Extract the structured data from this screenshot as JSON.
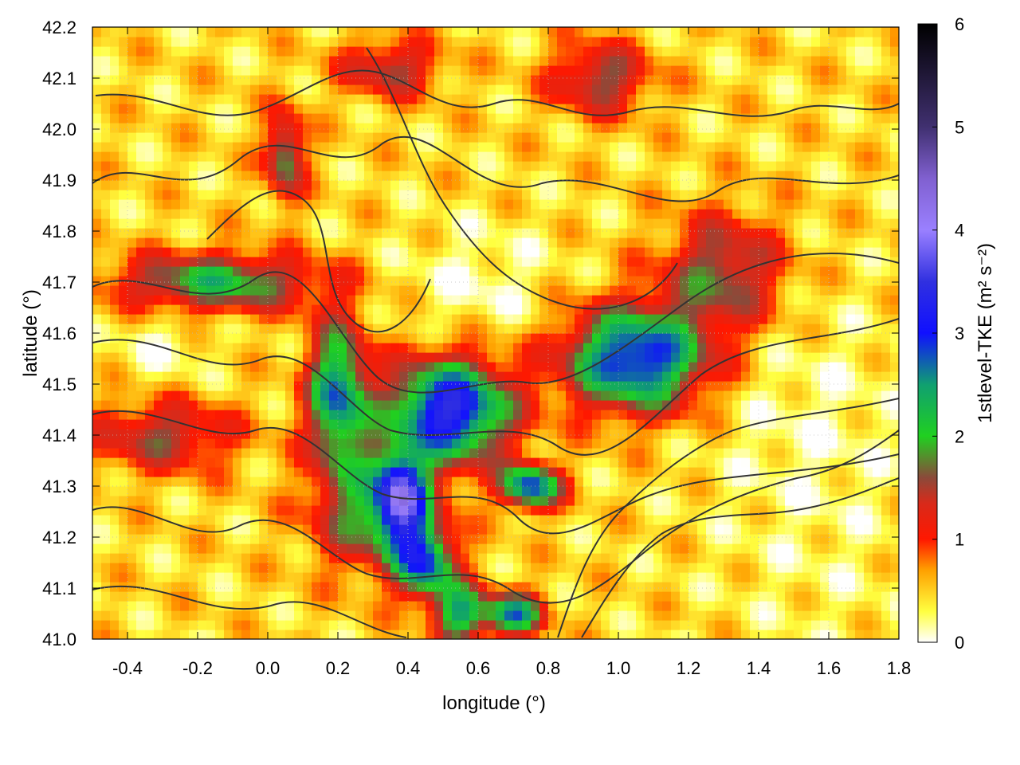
{
  "chart_data": {
    "type": "heatmap",
    "xlabel": "longitude (°)",
    "ylabel": "latitude (°)",
    "colorbar_label": "1stlevel-TKE (m² s⁻²)",
    "xlim": [
      -0.5,
      1.8
    ],
    "ylim": [
      41.0,
      42.2
    ],
    "x_ticks": [
      {
        "value": -0.4,
        "label": "-0.4"
      },
      {
        "value": -0.2,
        "label": "-0.2"
      },
      {
        "value": 0.0,
        "label": "0.0"
      },
      {
        "value": 0.2,
        "label": "0.2"
      },
      {
        "value": 0.4,
        "label": "0.4"
      },
      {
        "value": 0.6,
        "label": "0.6"
      },
      {
        "value": 0.8,
        "label": "0.8"
      },
      {
        "value": 1.0,
        "label": "1.0"
      },
      {
        "value": 1.2,
        "label": "1.2"
      },
      {
        "value": 1.4,
        "label": "1.4"
      },
      {
        "value": 1.6,
        "label": "1.6"
      },
      {
        "value": 1.8,
        "label": "1.8"
      }
    ],
    "y_ticks": [
      {
        "value": 41.0,
        "label": "41.0"
      },
      {
        "value": 41.1,
        "label": "41.1"
      },
      {
        "value": 41.2,
        "label": "41.2"
      },
      {
        "value": 41.3,
        "label": "41.3"
      },
      {
        "value": 41.4,
        "label": "41.4"
      },
      {
        "value": 41.5,
        "label": "41.5"
      },
      {
        "value": 41.6,
        "label": "41.6"
      },
      {
        "value": 41.7,
        "label": "41.7"
      },
      {
        "value": 41.8,
        "label": "41.8"
      },
      {
        "value": 41.9,
        "label": "41.9"
      },
      {
        "value": 42.0,
        "label": "42.0"
      },
      {
        "value": 42.1,
        "label": "42.1"
      },
      {
        "value": 42.2,
        "label": "42.2"
      }
    ],
    "colorbar": {
      "range": [
        0,
        6
      ],
      "ticks": [
        {
          "value": 0,
          "label": "0"
        },
        {
          "value": 1,
          "label": "1"
        },
        {
          "value": 2,
          "label": "2"
        },
        {
          "value": 3,
          "label": "3"
        },
        {
          "value": 4,
          "label": "4"
        },
        {
          "value": 5,
          "label": "5"
        },
        {
          "value": 6,
          "label": "6"
        }
      ],
      "palette": [
        {
          "value": 0.0,
          "color": "#ffffff"
        },
        {
          "value": 0.3,
          "color": "#ffff40"
        },
        {
          "value": 0.7,
          "color": "#ffa000"
        },
        {
          "value": 1.0,
          "color": "#ff1800"
        },
        {
          "value": 1.35,
          "color": "#d82a1a"
        },
        {
          "value": 1.6,
          "color": "#8a4a3a"
        },
        {
          "value": 2.0,
          "color": "#20d020"
        },
        {
          "value": 2.5,
          "color": "#10a070"
        },
        {
          "value": 3.0,
          "color": "#1010ff"
        },
        {
          "value": 3.5,
          "color": "#3030e0"
        },
        {
          "value": 4.0,
          "color": "#9a80ff"
        },
        {
          "value": 4.5,
          "color": "#8060d0"
        },
        {
          "value": 5.0,
          "color": "#403070"
        },
        {
          "value": 6.0,
          "color": "#000000"
        }
      ]
    },
    "field": {
      "background": 0.45,
      "blobs": [
        {
          "lon": 0.52,
          "lat": 41.45,
          "sx": 0.12,
          "sy": 0.07,
          "v": 3.0
        },
        {
          "lon": 1.05,
          "lat": 41.55,
          "sx": 0.14,
          "sy": 0.07,
          "v": 2.7
        },
        {
          "lon": 0.2,
          "lat": 41.48,
          "sx": 0.06,
          "sy": 0.1,
          "v": 2.2
        },
        {
          "lon": -0.15,
          "lat": 41.7,
          "sx": 0.2,
          "sy": 0.04,
          "v": 1.7
        },
        {
          "lon": 0.38,
          "lat": 41.28,
          "sx": 0.05,
          "sy": 0.06,
          "v": 2.6
        },
        {
          "lon": 0.75,
          "lat": 41.3,
          "sx": 0.06,
          "sy": 0.03,
          "v": 2.4
        },
        {
          "lon": 0.45,
          "lat": 41.15,
          "sx": 0.06,
          "sy": 0.05,
          "v": 2.2
        },
        {
          "lon": 0.55,
          "lat": 41.05,
          "sx": 0.05,
          "sy": 0.04,
          "v": 1.9
        },
        {
          "lon": 0.7,
          "lat": 41.05,
          "sx": 0.06,
          "sy": 0.03,
          "v": 2.1
        },
        {
          "lon": 0.3,
          "lat": 41.25,
          "sx": 0.12,
          "sy": 0.08,
          "v": 1.4
        },
        {
          "lon": 1.3,
          "lat": 41.72,
          "sx": 0.12,
          "sy": 0.08,
          "v": 1.3
        },
        {
          "lon": 0.95,
          "lat": 42.1,
          "sx": 0.1,
          "sy": 0.05,
          "v": 1.2
        },
        {
          "lon": 0.35,
          "lat": 42.12,
          "sx": 0.1,
          "sy": 0.04,
          "v": 1.1
        },
        {
          "lon": 0.05,
          "lat": 41.95,
          "sx": 0.04,
          "sy": 0.06,
          "v": 1.5
        },
        {
          "lon": -0.3,
          "lat": 41.4,
          "sx": 0.15,
          "sy": 0.05,
          "v": 1.1
        },
        {
          "lon": 0.6,
          "lat": 41.7,
          "sx": 0.15,
          "sy": 0.08,
          "v": -0.35
        },
        {
          "lon": -0.3,
          "lat": 41.58,
          "sx": 0.1,
          "sy": 0.06,
          "v": -0.3
        },
        {
          "lon": 1.6,
          "lat": 41.08,
          "sx": 0.22,
          "sy": 0.1,
          "v": -0.1
        },
        {
          "lon": 1.55,
          "lat": 41.4,
          "sx": 0.2,
          "sy": 0.18,
          "v": -0.3
        }
      ]
    }
  }
}
